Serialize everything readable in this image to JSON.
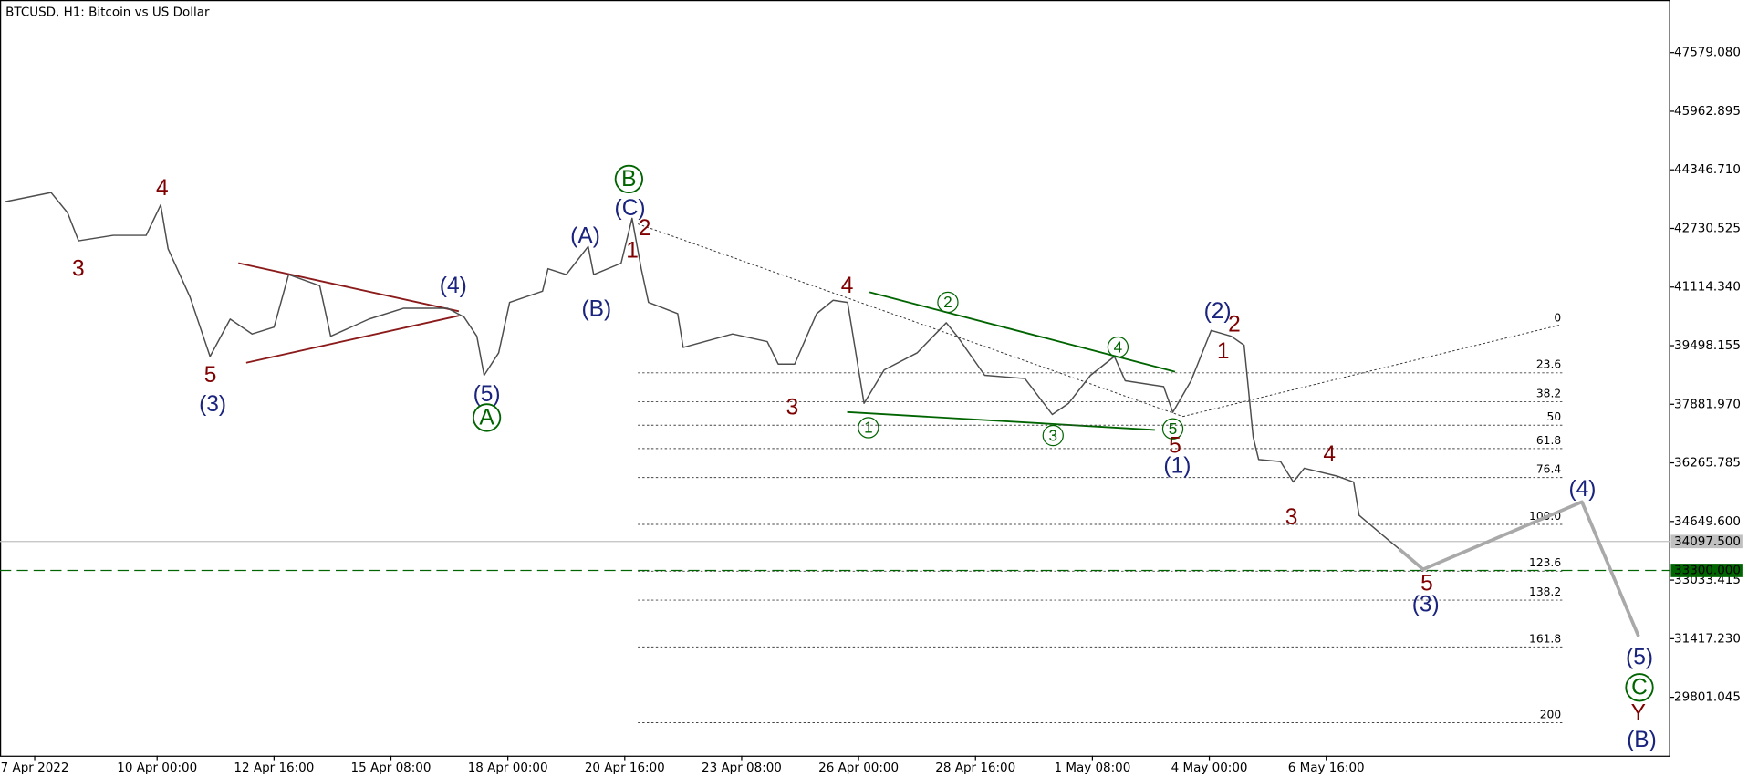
{
  "chart_data": {
    "type": "line",
    "title": "BTCUSD, H1:  Bitcoin vs US Dollar",
    "x": [
      -83,
      -58,
      -49,
      -43,
      -24,
      -6,
      2,
      6,
      18,
      29,
      40,
      52,
      64,
      72,
      89,
      95,
      116,
      135,
      159,
      168,
      175,
      179,
      187,
      193,
      211,
      214,
      224,
      236,
      239,
      254,
      260,
      265,
      269,
      285,
      288,
      315,
      334,
      340,
      349,
      361,
      370,
      378,
      383,
      387,
      398,
      416,
      432,
      438,
      453,
      475,
      490,
      499,
      511,
      524,
      530,
      551,
      556,
      566,
      577,
      588,
      595,
      600,
      603,
      615,
      622,
      628,
      646,
      655,
      658,
      674,
      680
    ],
    "values": [
      43470,
      43720,
      43160,
      42390,
      42540,
      42540,
      43380,
      42170,
      40840,
      39200,
      40230,
      39820,
      40010,
      41460,
      41150,
      39760,
      40230,
      40530,
      40530,
      40290,
      39760,
      38680,
      39300,
      40690,
      41000,
      41620,
      41460,
      42230,
      41460,
      41770,
      43010,
      41620,
      40690,
      40380,
      39450,
      39820,
      39610,
      38990,
      38990,
      40380,
      40750,
      40690,
      39140,
      37910,
      38830,
      39300,
      40130,
      39760,
      38680,
      38590,
      37600,
      37910,
      38680,
      39200,
      38530,
      38370,
      37660,
      38530,
      39920,
      39760,
      39510,
      36980,
      36360,
      36300,
      35740,
      36120,
      35900,
      35740,
      34820,
      34140,
      33890
    ],
    "color": "#4d4d4d",
    "xlim": [
      -86,
      828
    ],
    "xticks": [
      {
        "value": -67,
        "label": "7 Apr 2022"
      },
      {
        "value": 0,
        "label": "10 Apr 00:00"
      },
      {
        "value": 64,
        "label": "12 Apr 16:00"
      },
      {
        "value": 128,
        "label": "15 Apr 08:00"
      },
      {
        "value": 192,
        "label": "18 Apr 00:00"
      },
      {
        "value": 256,
        "label": "20 Apr 16:00"
      },
      {
        "value": 320,
        "label": "23 Apr 08:00"
      },
      {
        "value": 384,
        "label": "26 Apr 00:00"
      },
      {
        "value": 448,
        "label": "28 Apr 16:00"
      },
      {
        "value": 512,
        "label": "1 May 08:00"
      },
      {
        "value": 576,
        "label": "4 May 00:00"
      },
      {
        "value": 640,
        "label": "6 May 16:00"
      }
    ],
    "ylim": [
      28190,
      49030
    ],
    "yticks": [
      {
        "value": 47579.08,
        "label": "47579.080"
      },
      45962.895,
      {
        "value": 44346.71,
        "label": "44346.710"
      },
      42730.525,
      {
        "value": 41114.34,
        "label": "41114.340"
      },
      39498.155,
      {
        "value": 37881.97,
        "label": "37881.970"
      },
      36265.785,
      {
        "value": 34649.6,
        "label": "34649.600"
      },
      33033.415,
      {
        "value": 31417.23,
        "label": "31417.230"
      },
      29801.045
    ],
    "price_lines": [
      {
        "value": 34097.5,
        "label": "34097.500",
        "color": "#c0c0c0"
      },
      {
        "value": 33300,
        "label": "33300.000",
        "color": "#006400"
      }
    ],
    "fibonacci": {
      "price_0": 40040,
      "price_100": 34570,
      "levels": [
        0,
        23.6,
        38.2,
        50,
        61.8,
        76.4,
        {
          "value": 100,
          "label": "100.0"
        },
        123.6,
        138.2,
        161.8,
        200
      ]
    },
    "projection": {
      "x": [
        680,
        693,
        780,
        811
      ],
      "values": [
        33890,
        33330,
        35190,
        31480
      ],
      "color": "#a9a9a9"
    },
    "wave_labels": [
      "3",
      "4",
      "5",
      "(3)",
      "(4)",
      "(5)",
      "A",
      "(A)",
      "(B)",
      "B",
      "(C)",
      "2",
      "1",
      "4",
      "3",
      "1",
      "2",
      "3",
      "4",
      "5",
      "5",
      "(1)",
      "(2)",
      "2",
      "1",
      "4",
      "3",
      "5",
      "(3)",
      "(4)",
      "(5)",
      "C",
      "Y",
      "(B)"
    ]
  }
}
